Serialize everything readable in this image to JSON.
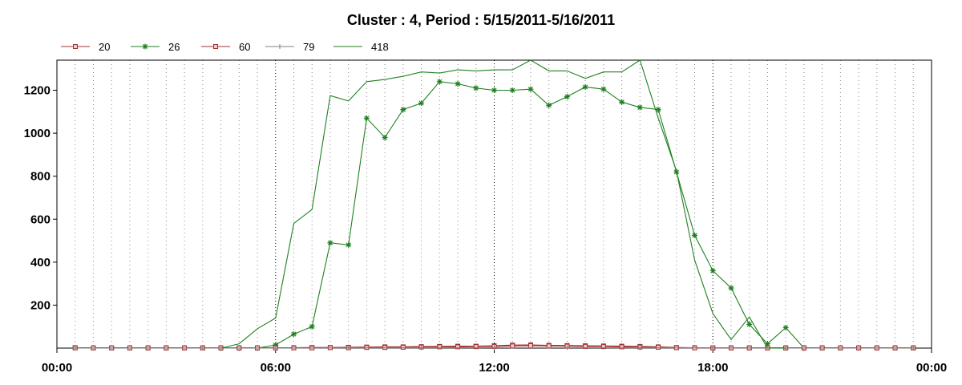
{
  "chart_data": {
    "type": "line",
    "title": "Cluster : 4, Period : 5/15/2011-5/16/2011",
    "xlabel": "",
    "ylabel": "",
    "x_unit": "hours",
    "xlim": [
      0,
      24
    ],
    "ylim": [
      0,
      1340
    ],
    "x_ticks": [
      0,
      6,
      12,
      18,
      24
    ],
    "x_tick_labels": [
      "00:00",
      "06:00",
      "12:00",
      "18:00",
      "00:00"
    ],
    "y_ticks": [
      200,
      400,
      600,
      800,
      1000,
      1200
    ],
    "y_tick_labels": [
      "200",
      "400",
      "600",
      "800",
      "1000",
      "1200"
    ],
    "grid": {
      "x": true,
      "y": false
    },
    "legend_position": "top-left",
    "series": [
      {
        "name": "20",
        "color": "#a03030",
        "marker": "square",
        "x": [
          0.5,
          1.0,
          1.5,
          2.0,
          2.5,
          3.0,
          3.5,
          4.0,
          4.5,
          5.0,
          5.5,
          6.0,
          6.5,
          7.0,
          7.5,
          8.0,
          8.5,
          9.0,
          9.5,
          10.0,
          10.5,
          11.0,
          11.5,
          12.0,
          12.5,
          13.0,
          13.5,
          14.0,
          14.5,
          15.0,
          15.5,
          16.0,
          16.5,
          17.0,
          17.5,
          18.0,
          18.5,
          19.0,
          19.5,
          20.0,
          20.5,
          21.0,
          21.5,
          22.0,
          22.5,
          23.0,
          23.5
        ],
        "values": [
          2,
          1,
          1,
          1,
          1,
          1,
          1,
          1,
          1,
          1,
          1,
          2,
          2,
          3,
          3,
          4,
          5,
          6,
          6,
          7,
          8,
          9,
          9,
          11,
          14,
          15,
          13,
          12,
          11,
          10,
          9,
          8,
          6,
          3,
          2,
          1,
          1,
          1,
          1,
          1,
          1,
          1,
          1,
          1,
          1,
          1,
          1
        ]
      },
      {
        "name": "26",
        "color": "#208020",
        "marker": "star",
        "x": [
          4.5,
          5.0,
          5.5,
          6.0,
          6.5,
          7.0,
          7.5,
          8.0,
          8.5,
          9.0,
          9.5,
          10.0,
          10.5,
          11.0,
          11.5,
          12.0,
          12.5,
          13.0,
          13.5,
          14.0,
          14.5,
          15.0,
          15.5,
          16.0,
          16.5,
          17.0,
          17.5,
          18.0,
          18.5,
          19.0,
          19.5,
          20.0,
          20.5
        ],
        "values": [
          0,
          0,
          0,
          15,
          65,
          100,
          490,
          480,
          1070,
          980,
          1110,
          1140,
          1240,
          1230,
          1210,
          1200,
          1200,
          1205,
          1130,
          1170,
          1215,
          1205,
          1145,
          1120,
          1110,
          820,
          525,
          360,
          280,
          110,
          20,
          95,
          0
        ]
      },
      {
        "name": "60",
        "color": "#a03030",
        "marker": "square",
        "x": [
          0.5,
          1.0,
          1.5,
          2.0,
          2.5,
          3.0,
          3.5,
          4.0,
          4.5,
          5.0,
          5.5,
          6.0,
          6.5,
          7.0,
          7.5,
          8.0,
          8.5,
          9.0,
          9.5,
          10.0,
          10.5,
          11.0,
          11.5,
          12.0,
          12.5,
          13.0,
          13.5,
          14.0,
          14.5,
          15.0,
          15.5,
          16.0,
          16.5,
          17.0,
          17.5,
          18.0,
          18.5,
          19.0,
          19.5,
          20.0,
          20.5,
          21.0,
          21.5,
          22.0,
          22.5,
          23.0,
          23.5
        ],
        "values": [
          1,
          1,
          1,
          1,
          1,
          1,
          1,
          1,
          1,
          1,
          1,
          1,
          1,
          1,
          2,
          2,
          3,
          3,
          4,
          5,
          6,
          6,
          7,
          8,
          10,
          11,
          10,
          9,
          8,
          7,
          6,
          5,
          4,
          2,
          1,
          1,
          1,
          1,
          1,
          1,
          1,
          1,
          1,
          1,
          1,
          1,
          1
        ]
      },
      {
        "name": "79",
        "color": "#808080",
        "marker": "plus",
        "x": [
          0.5,
          4.0,
          6.0,
          8.0,
          10.0,
          12.0,
          14.0,
          16.0,
          18.0,
          20.0,
          23.5
        ],
        "values": [
          0,
          0,
          0,
          1,
          1,
          2,
          2,
          1,
          1,
          0,
          0
        ]
      },
      {
        "name": "418",
        "color": "#208020",
        "marker": "none",
        "x": [
          4.5,
          5.0,
          5.5,
          6.0,
          6.5,
          7.0,
          7.5,
          8.0,
          8.5,
          9.0,
          9.5,
          10.0,
          10.5,
          11.0,
          11.5,
          12.0,
          12.5,
          13.0,
          13.5,
          14.0,
          14.5,
          15.0,
          15.5,
          16.0,
          16.5,
          17.0,
          17.5,
          18.0,
          18.5,
          19.0,
          19.5,
          20.0
        ],
        "values": [
          0,
          20,
          90,
          140,
          580,
          645,
          1175,
          1150,
          1240,
          1250,
          1265,
          1285,
          1280,
          1295,
          1290,
          1295,
          1295,
          1340,
          1290,
          1290,
          1255,
          1285,
          1285,
          1340,
          1070,
          825,
          410,
          160,
          40,
          145,
          0,
          0
        ]
      }
    ]
  }
}
